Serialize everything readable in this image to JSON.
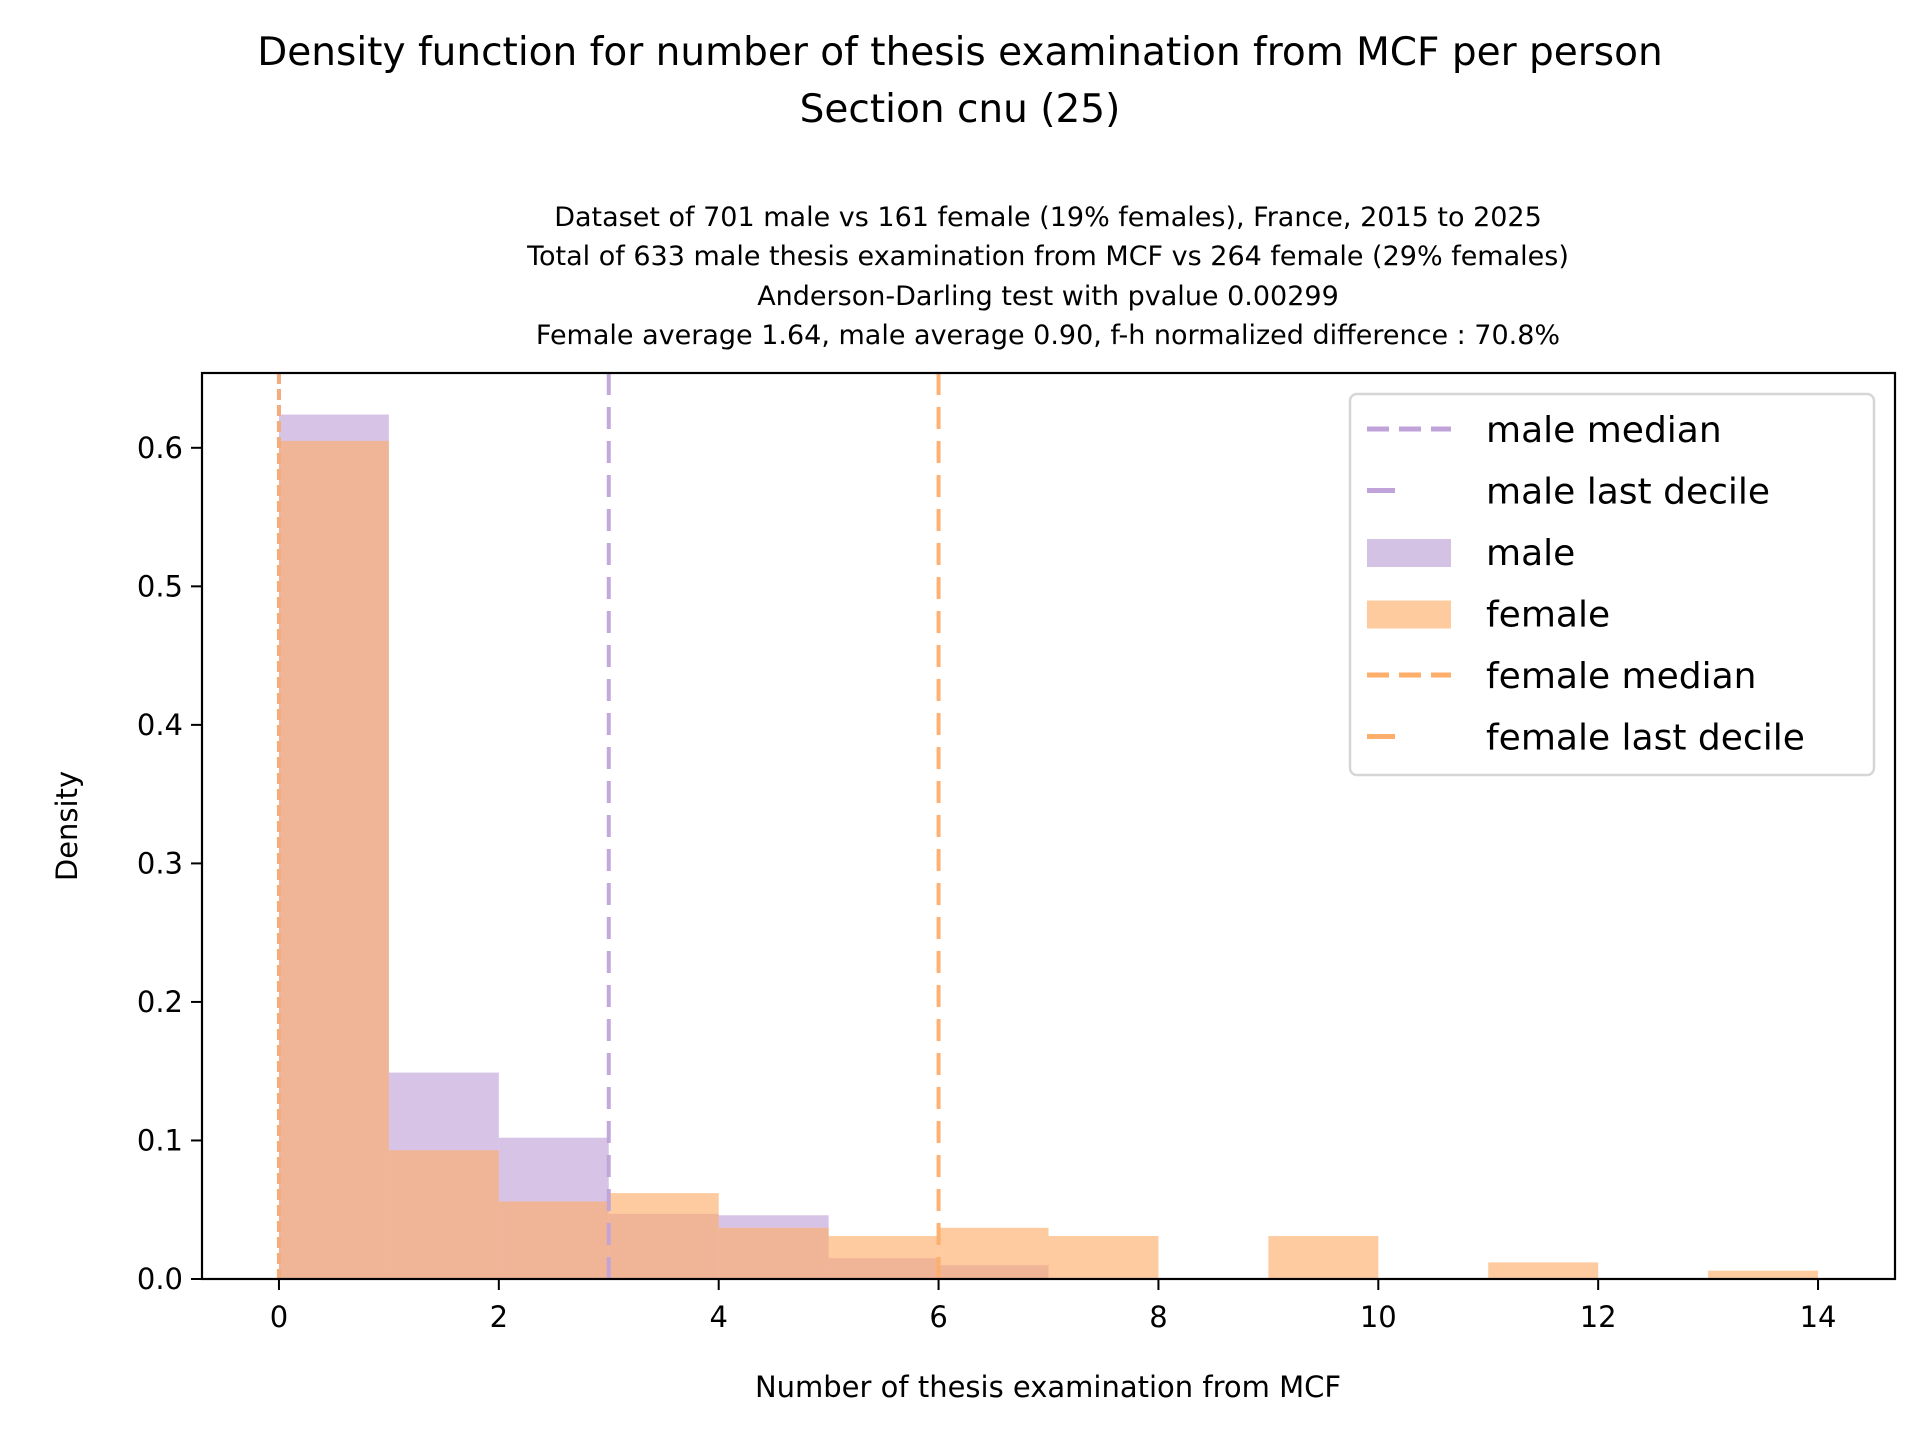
{
  "chart_data": {
    "type": "bar",
    "title": "Density function for number of thesis examination from MCF per person",
    "title_line2": "Section cnu (25)",
    "subtitle_lines": [
      "Dataset of 701 male vs 161 female (19% females), France, 2015 to 2025",
      "Total of 633 male thesis examination from MCF vs 264 female (29% females)",
      "Anderson-Darling test with pvalue 0.00299",
      "Female average 1.64, male average 0.90, f-h normalized difference : 70.8%"
    ],
    "xlabel": "Number of thesis examination from MCF",
    "ylabel": "Density",
    "xlim": [
      -0.7,
      14.7
    ],
    "ylim": [
      0,
      0.654
    ],
    "xticks": [
      0,
      2,
      4,
      6,
      8,
      10,
      12,
      14
    ],
    "xtick_labels": [
      "0",
      "2",
      "4",
      "6",
      "8",
      "10",
      "12",
      "14"
    ],
    "yticks": [
      0.0,
      0.1,
      0.2,
      0.3,
      0.4,
      0.5,
      0.6
    ],
    "ytick_labels": [
      "0.0",
      "0.1",
      "0.2",
      "0.3",
      "0.4",
      "0.5",
      "0.6"
    ],
    "grid": false,
    "legend_position": "top-right",
    "bin_edges": [
      0,
      1,
      2,
      3,
      4,
      5,
      6,
      7,
      8,
      9,
      10,
      11,
      12,
      13,
      14
    ],
    "series": [
      {
        "name": "male",
        "color": "#b692d1",
        "opacity": 0.55,
        "values": [
          0.624,
          0.149,
          0.102,
          0.047,
          0.046,
          0.015,
          0.01,
          0,
          0,
          0,
          0,
          0,
          0,
          0
        ]
      },
      {
        "name": "female",
        "color": "#fdae6b",
        "opacity": 0.65,
        "values": [
          0.605,
          0.093,
          0.056,
          0.062,
          0.037,
          0.031,
          0.037,
          0.031,
          0,
          0.031,
          0,
          0.012,
          0,
          0.006
        ]
      }
    ],
    "reference_lines": [
      {
        "name": "male median",
        "x": 0,
        "color": "#c0a3d8",
        "style": "short-dash"
      },
      {
        "name": "male last decile",
        "x": 3,
        "color": "#c0a3d8",
        "style": "long-dash"
      },
      {
        "name": "female median",
        "x": 0,
        "color": "#fdae6b",
        "style": "short-dash"
      },
      {
        "name": "female last decile",
        "x": 6,
        "color": "#fdae6b",
        "style": "long-dash"
      }
    ],
    "legend": [
      {
        "label": "male median",
        "kind": "short-dash",
        "color": "#c0a3d8"
      },
      {
        "label": "male last decile",
        "kind": "long-dash",
        "color": "#c0a3d8"
      },
      {
        "label": "male",
        "kind": "patch",
        "color": "#d4c2e4"
      },
      {
        "label": "female",
        "kind": "patch",
        "color": "#fdcb9d"
      },
      {
        "label": "female median",
        "kind": "short-dash",
        "color": "#fdae6b"
      },
      {
        "label": "female last decile",
        "kind": "long-dash",
        "color": "#fdae6b"
      }
    ]
  }
}
